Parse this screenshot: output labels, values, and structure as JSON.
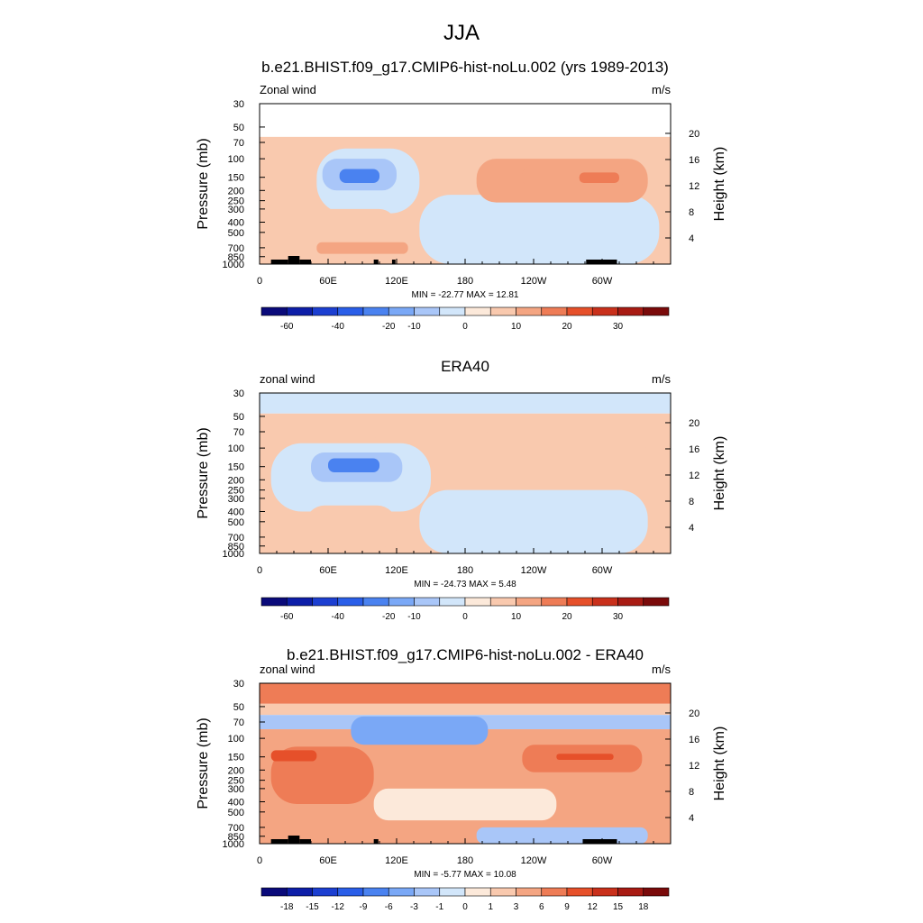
{
  "figure": {
    "title": "JJA"
  },
  "chart_data": [
    {
      "type": "heatmap",
      "title": "b.e21.BHIST.f09_g17.CMIP6-hist-noLu.002 (yrs 1989-2013)",
      "left_string": "Zonal wind",
      "right_string": "m/s",
      "ylabel": "Pressure (mb)",
      "ylabel_right": "Height (km)",
      "stats": "MIN = -22.77  MAX =  12.81",
      "x_ticks": [
        "0",
        "60E",
        "120E",
        "180",
        "120W",
        "60W"
      ],
      "y_ticks": [
        "30",
        "50",
        "70",
        "100",
        "150",
        "200",
        "250",
        "300",
        "400",
        "500",
        "700",
        "850",
        "1000"
      ],
      "height_ticks": [
        "20",
        "16",
        "12",
        "8",
        "4"
      ],
      "colorbar": {
        "labels": [
          "-60",
          "-40",
          "-20",
          "-10",
          "0",
          "10",
          "20",
          "30"
        ],
        "colors": [
          "#0a0a7a",
          "#0d1ea8",
          "#1c3fd1",
          "#2a5ee8",
          "#4a82f0",
          "#7aa8f6",
          "#a9c6f8",
          "#d2e6fa",
          "#fce9da",
          "#f9c9ae",
          "#f4a582",
          "#ee7c56",
          "#e6502a",
          "#c9301b",
          "#a81b13",
          "#7a0a0a"
        ]
      },
      "regions": [
        {
          "lon": [
            0,
            360
          ],
          "p": [
            62,
            1000
          ],
          "value": 1.5
        },
        {
          "lon": [
            50,
            140
          ],
          "p": [
            80,
            330
          ],
          "value": -6
        },
        {
          "lon": [
            140,
            350
          ],
          "p": [
            220,
            1000
          ],
          "value": -6
        },
        {
          "lon": [
            55,
            120
          ],
          "p": [
            100,
            200
          ],
          "value": -14
        },
        {
          "lon": [
            70,
            105
          ],
          "p": [
            125,
            170
          ],
          "value": -22
        },
        {
          "lon": [
            190,
            340
          ],
          "p": [
            100,
            260
          ],
          "value": 5
        },
        {
          "lon": [
            230,
            320
          ],
          "p": [
            115,
            190
          ],
          "value": 9
        },
        {
          "lon": [
            280,
            315
          ],
          "p": [
            135,
            170
          ],
          "value": 12
        },
        {
          "lon": [
            40,
            120
          ],
          "p": [
            300,
            700
          ],
          "value": 4
        },
        {
          "lon": [
            50,
            130
          ],
          "p": [
            620,
            800
          ],
          "value": 7
        }
      ],
      "topography": [
        [
          10,
          25
        ],
        [
          25,
          35
        ],
        [
          35,
          45
        ],
        [
          100,
          104
        ],
        [
          116,
          119
        ],
        [
          286,
          313
        ]
      ]
    },
    {
      "type": "heatmap",
      "title": "ERA40",
      "left_string": "zonal wind",
      "right_string": "m/s",
      "ylabel": "Pressure (mb)",
      "ylabel_right": "Height (km)",
      "stats": "MIN = -24.73  MAX =   5.48",
      "x_ticks": [
        "0",
        "60E",
        "120E",
        "180",
        "120W",
        "60W"
      ],
      "y_ticks": [
        "30",
        "50",
        "70",
        "100",
        "150",
        "200",
        "250",
        "300",
        "400",
        "500",
        "700",
        "850",
        "1000"
      ],
      "height_ticks": [
        "20",
        "16",
        "12",
        "8",
        "4"
      ],
      "colorbar": {
        "labels": [
          "-60",
          "-40",
          "-20",
          "-10",
          "0",
          "10",
          "20",
          "30"
        ],
        "colors": [
          "#0a0a7a",
          "#0d1ea8",
          "#1c3fd1",
          "#2a5ee8",
          "#4a82f0",
          "#7aa8f6",
          "#a9c6f8",
          "#d2e6fa",
          "#fce9da",
          "#f9c9ae",
          "#f4a582",
          "#ee7c56",
          "#e6502a",
          "#c9301b",
          "#a81b13",
          "#7a0a0a"
        ]
      },
      "regions": [
        {
          "lon": [
            0,
            360
          ],
          "p": [
            30,
            47
          ],
          "value": -6
        },
        {
          "lon": [
            0,
            360
          ],
          "p": [
            47,
            1000
          ],
          "value": 1.5
        },
        {
          "lon": [
            10,
            150
          ],
          "p": [
            90,
            400
          ],
          "value": -6
        },
        {
          "lon": [
            140,
            340
          ],
          "p": [
            250,
            1000
          ],
          "value": -6
        },
        {
          "lon": [
            45,
            125
          ],
          "p": [
            110,
            210
          ],
          "value": -14
        },
        {
          "lon": [
            60,
            105
          ],
          "p": [
            125,
            170
          ],
          "value": -22
        },
        {
          "lon": [
            200,
            345
          ],
          "p": [
            95,
            200
          ],
          "value": 4
        },
        {
          "lon": [
            100,
            200
          ],
          "p": [
            68,
            80
          ],
          "value": 4
        },
        {
          "lon": [
            40,
            120
          ],
          "p": [
            350,
            900
          ],
          "value": 4
        }
      ],
      "topography": []
    },
    {
      "type": "heatmap",
      "title": "b.e21.BHIST.f09_g17.CMIP6-hist-noLu.002 - ERA40",
      "left_string": "zonal wind",
      "right_string": "m/s",
      "ylabel": "Pressure (mb)",
      "ylabel_right": "Height (km)",
      "stats": "MIN =  -5.77  MAX =  10.08",
      "x_ticks": [
        "0",
        "60E",
        "120E",
        "180",
        "120W",
        "60W"
      ],
      "y_ticks": [
        "30",
        "50",
        "70",
        "100",
        "150",
        "200",
        "250",
        "300",
        "400",
        "500",
        "700",
        "850",
        "1000"
      ],
      "height_ticks": [
        "20",
        "16",
        "12",
        "8",
        "4"
      ],
      "colorbar": {
        "labels": [
          "-18",
          "-15",
          "-12",
          "-9",
          "-6",
          "-3",
          "-1",
          "0",
          "1",
          "3",
          "6",
          "9",
          "12",
          "15",
          "18"
        ],
        "colors": [
          "#0a0a7a",
          "#0d1ea8",
          "#1c3fd1",
          "#2a5ee8",
          "#4a82f0",
          "#7aa8f6",
          "#a9c6f8",
          "#d2e6fa",
          "#fce9da",
          "#f9c9ae",
          "#f4a582",
          "#ee7c56",
          "#e6502a",
          "#c9301b",
          "#a81b13",
          "#7a0a0a"
        ]
      },
      "regions": [
        {
          "lon": [
            0,
            360
          ],
          "p": [
            30,
            47
          ],
          "value": 6.5
        },
        {
          "lon": [
            0,
            360
          ],
          "p": [
            47,
            60
          ],
          "value": 2
        },
        {
          "lon": [
            0,
            360
          ],
          "p": [
            60,
            82
          ],
          "value": -2
        },
        {
          "lon": [
            0,
            360
          ],
          "p": [
            82,
            1000
          ],
          "value": 3.5
        },
        {
          "lon": [
            80,
            200
          ],
          "p": [
            62,
            115
          ],
          "value": -4
        },
        {
          "lon": [
            10,
            100
          ],
          "p": [
            120,
            420
          ],
          "value": 6.5
        },
        {
          "lon": [
            10,
            50
          ],
          "p": [
            130,
            165
          ],
          "value": 9.5
        },
        {
          "lon": [
            230,
            335
          ],
          "p": [
            115,
            210
          ],
          "value": 6.5
        },
        {
          "lon": [
            260,
            310
          ],
          "p": [
            140,
            160
          ],
          "value": 9.5
        },
        {
          "lon": [
            100,
            260
          ],
          "p": [
            300,
            600
          ],
          "value": 0.5
        },
        {
          "lon": [
            190,
            340
          ],
          "p": [
            700,
            1000
          ],
          "value": -2
        }
      ],
      "topography": [
        [
          10,
          25
        ],
        [
          25,
          35
        ],
        [
          35,
          45
        ],
        [
          100,
          104
        ],
        [
          283,
          313
        ]
      ]
    }
  ]
}
